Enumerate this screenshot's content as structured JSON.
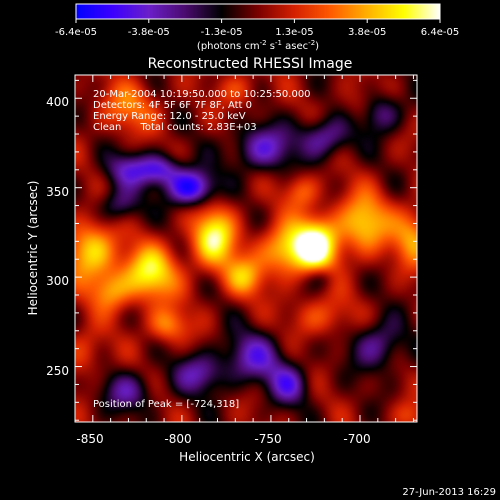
{
  "footer": {
    "timestamp": "27-Jun-2013 16:29"
  },
  "colorbar": {
    "tick_labels": [
      "-6.4e-05",
      "-3.8e-05",
      "-1.3e-05",
      "1.3e-05",
      "3.8e-05",
      "6.4e-05"
    ],
    "units": "(photons cm",
    "units_exp1": "-2",
    "units_mid": " s",
    "units_exp2": "-1",
    "units_end": " asec",
    "units_exp3": "-2",
    "units_close": ")",
    "range": [
      -6.4e-05,
      6.4e-05
    ]
  },
  "info": {
    "line1": "20-Mar-2004 10:19:50.000 to 10:25:50.000",
    "line2": "Detectors: 4F 5F 6F 7F 8F, Att 0",
    "line3": "Energy Range: 12.0 - 25.0 keV",
    "line4": "Clean      Total counts: 2.83E+03",
    "peak": "Position of Peak = [-724,318]"
  },
  "colors": {
    "background": "#000000",
    "foreground": "#ffffff",
    "colormap": [
      "#0000ff",
      "#3b00ff",
      "#6a1fc8",
      "#4a0b6e",
      "#000000",
      "#7a0000",
      "#d42000",
      "#ff5a00",
      "#ffb000",
      "#ffff00",
      "#ffffff"
    ]
  },
  "chart_data": {
    "type": "heatmap",
    "title": "Reconstructed RHESSI Image",
    "xlabel": "Heliocentric X (arcsec)",
    "ylabel": "Heliocentric Y (arcsec)",
    "x_ticks": [
      -850,
      -800,
      -750,
      -700
    ],
    "x_tick_labels": [
      "-850",
      "-800",
      "-750",
      "-700"
    ],
    "y_ticks": [
      250,
      300,
      350,
      400
    ],
    "y_tick_labels": [
      "250",
      "300",
      "350",
      "400"
    ],
    "xlim": [
      -860,
      -668
    ],
    "ylim": [
      219,
      413
    ],
    "value_range": [
      -6.4e-05,
      6.4e-05
    ],
    "peak": [
      -724,
      318
    ],
    "components": [
      {
        "x": -724,
        "y": 318,
        "sx": 9,
        "sy": 11,
        "a": 1.0
      },
      {
        "x": -742,
        "y": 315,
        "sx": 10,
        "sy": 10,
        "a": 0.72
      },
      {
        "x": -782,
        "y": 322,
        "sx": 9,
        "sy": 12,
        "a": 0.85
      },
      {
        "x": -765,
        "y": 300,
        "sx": 8,
        "sy": 8,
        "a": 0.55
      },
      {
        "x": -818,
        "y": 302,
        "sx": 11,
        "sy": 11,
        "a": 0.8
      },
      {
        "x": -851,
        "y": 315,
        "sx": 10,
        "sy": 12,
        "a": 0.75
      },
      {
        "x": -840,
        "y": 292,
        "sx": 8,
        "sy": 8,
        "a": 0.5
      },
      {
        "x": -698,
        "y": 330,
        "sx": 10,
        "sy": 12,
        "a": 0.7
      },
      {
        "x": -670,
        "y": 323,
        "sx": 8,
        "sy": 12,
        "a": 0.55
      },
      {
        "x": -733,
        "y": 348,
        "sx": 7,
        "sy": 7,
        "a": 0.4
      },
      {
        "x": -808,
        "y": 273,
        "sx": 8,
        "sy": 7,
        "a": 0.5
      },
      {
        "x": -722,
        "y": 278,
        "sx": 12,
        "sy": 8,
        "a": 0.35
      },
      {
        "x": -830,
        "y": 395,
        "sx": 12,
        "sy": 10,
        "a": 0.42
      },
      {
        "x": -768,
        "y": 405,
        "sx": 8,
        "sy": 7,
        "a": 0.3
      },
      {
        "x": -855,
        "y": 258,
        "sx": 8,
        "sy": 10,
        "a": 0.3
      },
      {
        "x": -700,
        "y": 395,
        "sx": 8,
        "sy": 8,
        "a": 0.3
      },
      {
        "x": -672,
        "y": 222,
        "sx": 7,
        "sy": 6,
        "a": 0.28
      },
      {
        "x": -795,
        "y": 350,
        "sx": 9,
        "sy": 7,
        "a": -0.95
      },
      {
        "x": -812,
        "y": 360,
        "sx": 8,
        "sy": 6,
        "a": -0.6
      },
      {
        "x": -830,
        "y": 360,
        "sx": 10,
        "sy": 7,
        "a": -0.5
      },
      {
        "x": -755,
        "y": 372,
        "sx": 12,
        "sy": 9,
        "a": -0.6
      },
      {
        "x": -720,
        "y": 378,
        "sx": 10,
        "sy": 8,
        "a": -0.55
      },
      {
        "x": -690,
        "y": 392,
        "sx": 9,
        "sy": 8,
        "a": -0.55
      },
      {
        "x": -835,
        "y": 340,
        "sx": 8,
        "sy": 7,
        "a": -0.45
      },
      {
        "x": -760,
        "y": 255,
        "sx": 12,
        "sy": 10,
        "a": -0.55
      },
      {
        "x": -740,
        "y": 240,
        "sx": 8,
        "sy": 8,
        "a": -0.55
      },
      {
        "x": -790,
        "y": 246,
        "sx": 10,
        "sy": 8,
        "a": -0.5
      },
      {
        "x": -690,
        "y": 262,
        "sx": 10,
        "sy": 10,
        "a": -0.5
      },
      {
        "x": -830,
        "y": 236,
        "sx": 10,
        "sy": 8,
        "a": -0.45
      },
      {
        "x": -722,
        "y": 300,
        "sx": 6,
        "sy": 5,
        "a": -0.3
      }
    ]
  }
}
